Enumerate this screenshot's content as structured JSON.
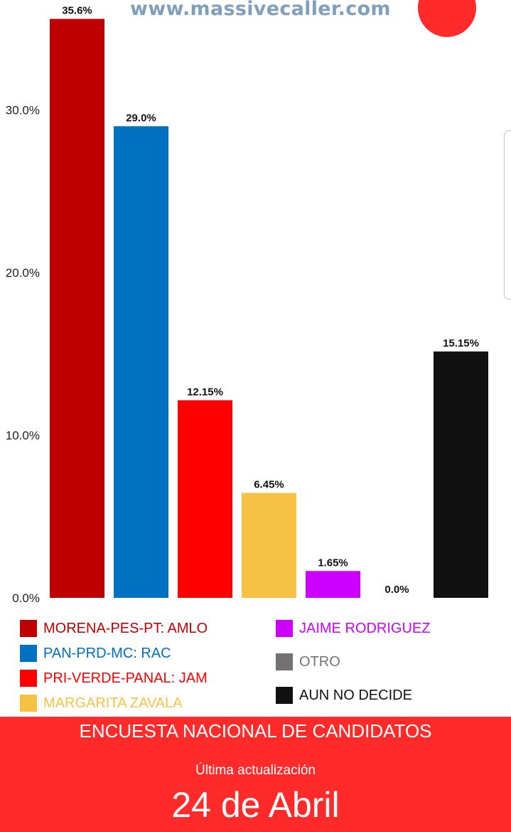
{
  "header": {
    "watermark": "www.massivecaller.com"
  },
  "chart_data": {
    "type": "bar",
    "title": "",
    "xlabel": "",
    "ylabel": "",
    "ylim": [
      0,
      36
    ],
    "yticks": [
      {
        "value": 0,
        "label": "0.0%"
      },
      {
        "value": 10,
        "label": "10.0%"
      },
      {
        "value": 20,
        "label": "20.0%"
      },
      {
        "value": 30,
        "label": "30.0%"
      }
    ],
    "grid": false,
    "legend_position": "bottom",
    "categories": [
      "MORENA-PES-PT: AMLO",
      "PAN-PRD-MC: RAC",
      "PRI-VERDE-PANAL: JAM",
      "MARGARITA ZAVALA",
      "JAIME RODRIGUEZ",
      "OTRO",
      "AUN NO DECIDE"
    ],
    "values": [
      35.6,
      29.0,
      12.15,
      6.45,
      1.65,
      0.0,
      15.15
    ],
    "data_labels": [
      "35.6%",
      "29.0%",
      "12.15%",
      "6.45%",
      "1.65%",
      "0.0%",
      "15.15%"
    ],
    "colors": [
      "#bf0000",
      "#0070c0",
      "#ff0000",
      "#f5c244",
      "#cc00ff",
      "#767171",
      "#111111"
    ]
  },
  "legend": {
    "left": [
      {
        "label": "MORENA-PES-PT: AMLO",
        "swatch_color": "#bf0000",
        "text_color": "#bf0000"
      },
      {
        "label": "PAN-PRD-MC: RAC",
        "swatch_color": "#0070c0",
        "text_color": "#0070c0"
      },
      {
        "label": "PRI-VERDE-PANAL: JAM",
        "swatch_color": "#ff0000",
        "text_color": "#ff0000"
      },
      {
        "label": "MARGARITA ZAVALA",
        "swatch_color": "#f5c244",
        "text_color": "#f5c244"
      }
    ],
    "right": [
      {
        "label": "JAIME RODRIGUEZ",
        "swatch_color": "#cc00ff",
        "text_color": "#cc00ff"
      },
      {
        "label": "OTRO",
        "swatch_color": "#767171",
        "text_color": "#767171"
      },
      {
        "label": "AUN NO DECIDE",
        "swatch_color": "#111111",
        "text_color": "#111111"
      }
    ]
  },
  "footer": {
    "title": "ENCUESTA NACIONAL DE CANDIDATOS",
    "subtitle": "Última actualización",
    "date": "24 de Abril",
    "background_color": "#ff2b2b"
  }
}
